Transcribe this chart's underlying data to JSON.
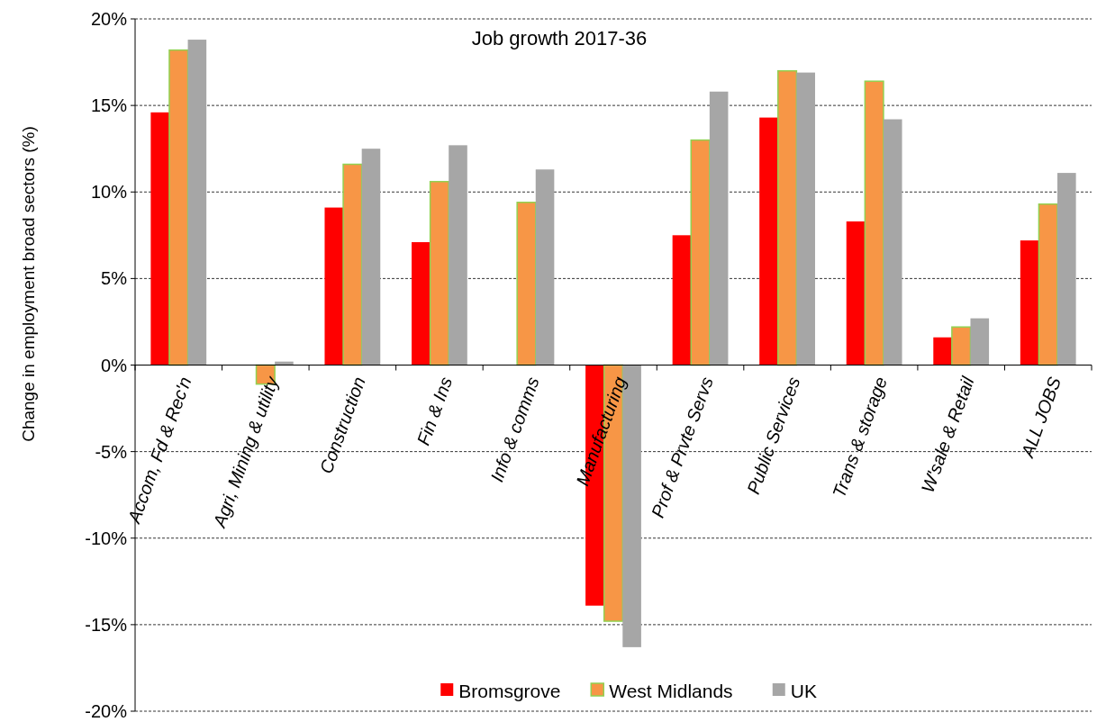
{
  "chart_data": {
    "type": "bar",
    "title": "Job growth 2017-36",
    "ylabel": "Change in employment broad sectors (%)",
    "categories": [
      "Accom, Fd & Rec'n",
      "Agri, Mining & utility",
      "Construction",
      "Fin & Ins",
      "Info & comms",
      "Manufacturing",
      "Prof & Prvte Servs",
      "Public Services",
      "Trans & storage",
      "W'sale & Retail",
      "ALL JOBS"
    ],
    "series": [
      {
        "name": "Bromsgrove",
        "color": "#ff0000",
        "values": [
          14.6,
          null,
          9.1,
          7.1,
          null,
          -13.9,
          7.5,
          14.3,
          8.3,
          1.6,
          7.2
        ]
      },
      {
        "name": "West Midlands",
        "color": "#f79646",
        "values": [
          18.2,
          -1.1,
          11.6,
          10.6,
          9.4,
          -14.8,
          13.0,
          17.0,
          16.4,
          2.2,
          9.3
        ]
      },
      {
        "name": "UK",
        "color": "#a6a6a6",
        "values": [
          18.8,
          0.2,
          12.5,
          12.7,
          11.3,
          -16.3,
          15.8,
          16.9,
          14.2,
          2.7,
          11.1
        ]
      }
    ],
    "ylim": [
      -20,
      20
    ],
    "yticks": [
      {
        "value": -20,
        "label": "-20%"
      },
      {
        "value": -15,
        "label": "-15%"
      },
      {
        "value": -10,
        "label": "-10%"
      },
      {
        "value": -5,
        "label": "-5%"
      },
      {
        "value": 0,
        "label": "0%"
      },
      {
        "value": 5,
        "label": "5%"
      },
      {
        "value": 10,
        "label": "10%"
      },
      {
        "value": 15,
        "label": "15%"
      },
      {
        "value": 20,
        "label": "20%"
      }
    ],
    "grid": "y",
    "legend": "bottom"
  }
}
